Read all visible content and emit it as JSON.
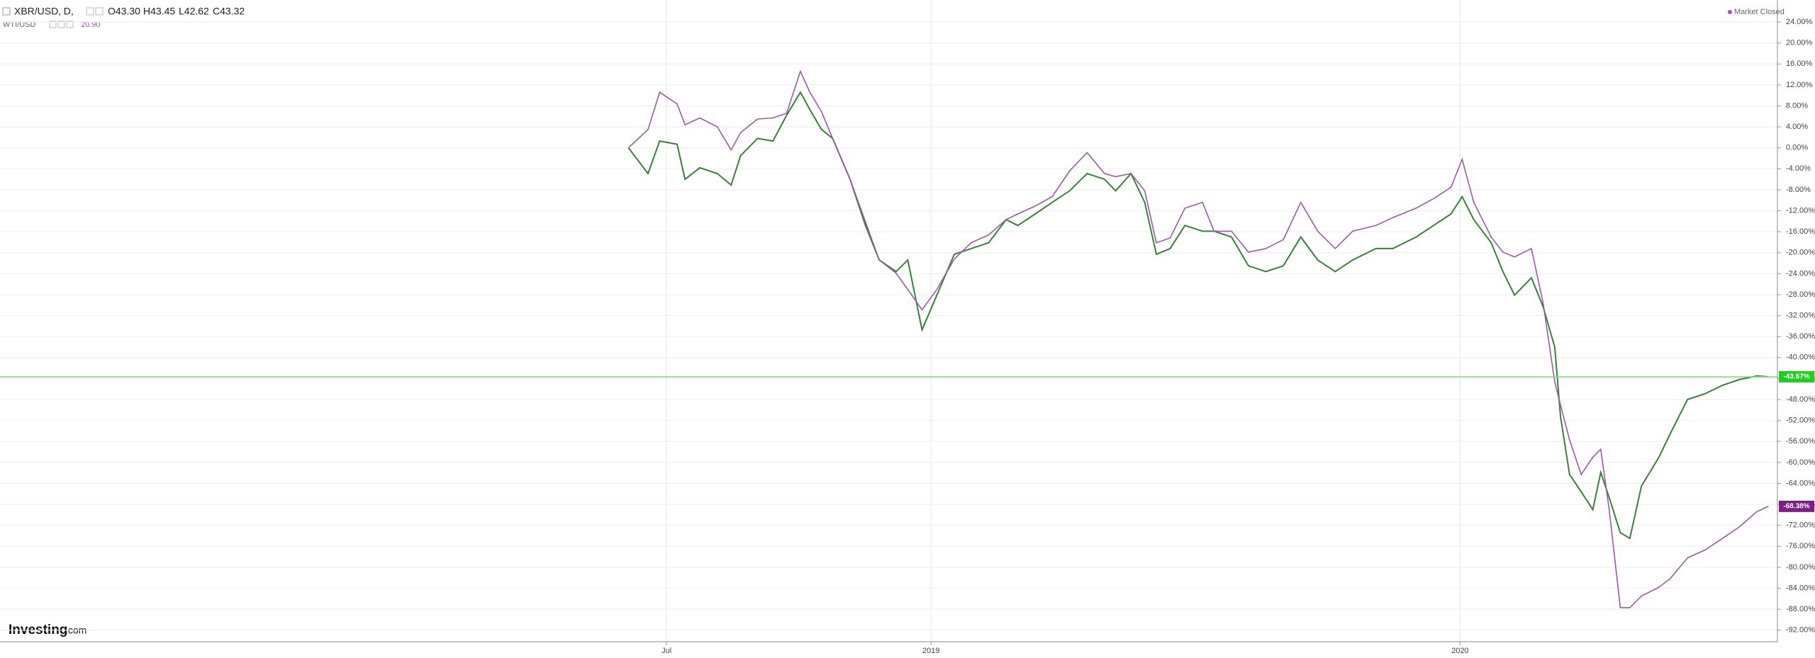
{
  "header": {
    "interval": ", D,",
    "ohlc": [
      "O43.30",
      "H43.45",
      "L42.62",
      "C43.32"
    ],
    "second_value": "20.90",
    "status": "Market Closed",
    "logo": "Investing",
    "logo_suffix": ".com"
  },
  "chart_data": {
    "type": "line",
    "x": [
      2018.428,
      2018.465,
      2018.487,
      2018.52,
      2018.535,
      2018.563,
      2018.596,
      2018.622,
      2018.64,
      2018.672,
      2018.701,
      2018.727,
      2018.753,
      2018.771,
      2018.793,
      2018.814,
      2018.847,
      2018.876,
      2018.902,
      2018.934,
      2018.956,
      2018.983,
      2019.011,
      2019.044,
      2019.076,
      2019.109,
      2019.142,
      2019.164,
      2019.197,
      2019.229,
      2019.262,
      2019.295,
      2019.328,
      2019.349,
      2019.378,
      2019.404,
      2019.426,
      2019.452,
      2019.48,
      2019.513,
      2019.535,
      2019.568,
      2019.6,
      2019.633,
      2019.666,
      2019.699,
      2019.731,
      2019.764,
      2019.797,
      2019.841,
      2019.873,
      2019.917,
      2019.95,
      2019.983,
      2020.004,
      2020.026,
      2020.059,
      2020.081,
      2020.103,
      2020.135,
      2020.157,
      2020.179,
      2020.19,
      2020.207,
      2020.229,
      2020.251,
      2020.266,
      2020.282,
      2020.303,
      2020.321,
      2020.343,
      2020.376,
      2020.397,
      2020.43,
      2020.463,
      2020.496,
      2020.528,
      2020.561,
      2020.583
    ],
    "series": [
      {
        "name": "XBR/USD",
        "color": "#3b7f3b",
        "last_label": "-43.67%",
        "values": [
          0,
          -4.9,
          1.3,
          0.7,
          -6.0,
          -3.8,
          -4.9,
          -7.1,
          -1.5,
          1.8,
          1.3,
          6.2,
          10.6,
          7.3,
          3.5,
          1.8,
          -6.0,
          -14.8,
          -21.4,
          -23.6,
          -21.4,
          -34.7,
          -28.1,
          -20.3,
          -19.2,
          -18.1,
          -13.7,
          -14.8,
          -12.6,
          -10.4,
          -8.2,
          -4.9,
          -6.0,
          -8.2,
          -4.9,
          -10.4,
          -20.3,
          -19.2,
          -14.8,
          -15.9,
          -15.9,
          -17.0,
          -22.5,
          -23.6,
          -22.5,
          -17.0,
          -21.4,
          -23.6,
          -21.4,
          -19.2,
          -19.2,
          -17.0,
          -14.8,
          -12.6,
          -9.3,
          -13.7,
          -18.1,
          -23.6,
          -28.1,
          -24.8,
          -30.3,
          -38.0,
          -51.3,
          -62.3,
          -65.6,
          -69.0,
          -61.9,
          -66.7,
          -73.4,
          -74.5,
          -64.5,
          -59.0,
          -54.6,
          -48.0,
          -46.9,
          -45.3,
          -44.2,
          -43.5,
          -43.67
        ]
      },
      {
        "name": "WTI/USD",
        "color": "#9b59a6",
        "last_label": "-68.38%",
        "values": [
          0,
          3.5,
          10.6,
          8.4,
          4.4,
          5.7,
          4.0,
          -0.4,
          2.9,
          5.5,
          5.7,
          6.6,
          14.6,
          10.6,
          6.9,
          1.8,
          -6.0,
          -14.1,
          -21.4,
          -23.9,
          -27.0,
          -30.9,
          -27.0,
          -21.2,
          -18.1,
          -16.6,
          -13.7,
          -12.6,
          -11.1,
          -9.3,
          -4.4,
          -0.9,
          -4.9,
          -5.5,
          -4.9,
          -8.2,
          -18.1,
          -17.2,
          -11.5,
          -10.4,
          -15.9,
          -15.9,
          -19.9,
          -19.2,
          -17.5,
          -10.4,
          -15.9,
          -19.2,
          -15.9,
          -14.8,
          -13.3,
          -11.5,
          -9.7,
          -7.5,
          -2.2,
          -10.4,
          -17.0,
          -19.9,
          -20.8,
          -19.2,
          -29.6,
          -44.6,
          -49.1,
          -55.7,
          -62.3,
          -59.0,
          -57.5,
          -69.0,
          -87.7,
          -87.7,
          -85.5,
          -83.8,
          -82.2,
          -78.2,
          -76.7,
          -74.5,
          -72.3,
          -69.4,
          -68.38
        ]
      }
    ],
    "xlim": [
      2017.24,
      2020.6
    ],
    "xticks": [
      {
        "value": 2018.5,
        "label": "Jul"
      },
      {
        "value": 2019,
        "label": "2019"
      },
      {
        "value": 2020,
        "label": "2020"
      }
    ],
    "ylim": [
      -94.2,
      28.2
    ],
    "yticks": [
      {
        "value": 24,
        "label": "24.00%"
      },
      {
        "value": 20,
        "label": "20.00%"
      },
      {
        "value": 16,
        "label": "16.00%"
      },
      {
        "value": 12,
        "label": "12.00%"
      },
      {
        "value": 8,
        "label": "8.00%"
      },
      {
        "value": 4,
        "label": "4.00%"
      },
      {
        "value": 0,
        "label": "0.00%"
      },
      {
        "value": -4,
        "label": "-4.00%"
      },
      {
        "value": -8,
        "label": "-8.00%"
      },
      {
        "value": -12,
        "label": "-12.00%"
      },
      {
        "value": -16,
        "label": "-16.00%"
      },
      {
        "value": -20,
        "label": "-20.00%"
      },
      {
        "value": -24,
        "label": "-24.00%"
      },
      {
        "value": -28,
        "label": "-28.00%"
      },
      {
        "value": -32,
        "label": "-32.00%"
      },
      {
        "value": -36,
        "label": "-36.00%"
      },
      {
        "value": -40,
        "label": "-40.00%"
      },
      {
        "value": -44,
        "label": "-44.00%"
      },
      {
        "value": -48,
        "label": "-48.00%"
      },
      {
        "value": -52,
        "label": "-52.00%"
      },
      {
        "value": -56,
        "label": "-56.00%"
      },
      {
        "value": -60,
        "label": "-60.00%"
      },
      {
        "value": -64,
        "label": "-64.00%"
      },
      {
        "value": -68,
        "label": "-68.00%"
      },
      {
        "value": -72,
        "label": "-72.00%"
      },
      {
        "value": -76,
        "label": "-76.00%"
      },
      {
        "value": -80,
        "label": "-80.00%"
      },
      {
        "value": -84,
        "label": "-84.00%"
      },
      {
        "value": -88,
        "label": "-88.00%"
      },
      {
        "value": -92,
        "label": "-92.00%"
      }
    ],
    "grid": true,
    "current_line_color": "#7ddc7d"
  }
}
